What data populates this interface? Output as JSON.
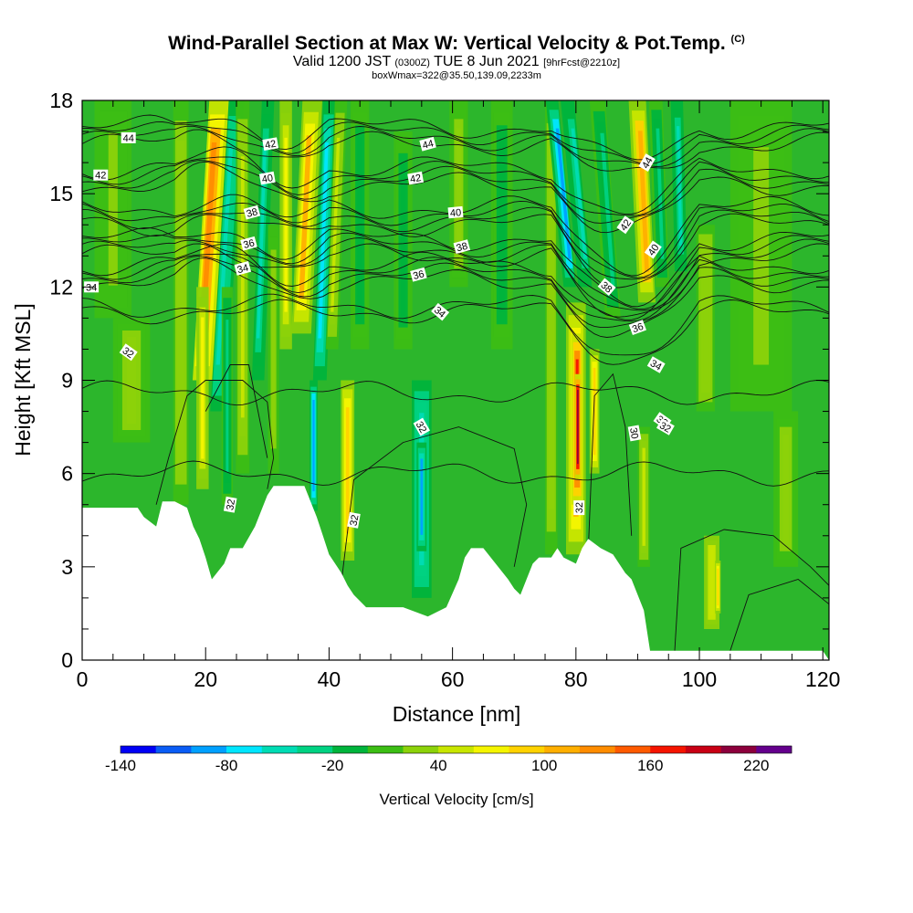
{
  "title": {
    "main": "Wind-Parallel Section at Max W: Vertical Velocity & Pot.Temp.",
    "copyright": "(C)",
    "sub_prefix": "Valid 1200 JST",
    "sub_utc": "(0300Z)",
    "sub_date": "TUE 8 Jun 2021",
    "sub_fcst": "[9hrFcst@2210z]",
    "sub2": "boxWmax=322@35.50,139.09,2233m"
  },
  "colorbar": {
    "label": "Vertical Velocity [cm/s]",
    "tick_labels": [
      "-140",
      "-80",
      "-20",
      "40",
      "100",
      "160",
      "220"
    ],
    "colors": [
      "#0000f5",
      "#0a5cf5",
      "#00a0ff",
      "#00e6ff",
      "#00dcb4",
      "#00d282",
      "#00b43c",
      "#3cbe14",
      "#8cd20a",
      "#c8e600",
      "#f5f500",
      "#ffd200",
      "#ffaf00",
      "#ff8c00",
      "#ff5a00",
      "#f51400",
      "#c80014",
      "#8c003c",
      "#64008c"
    ]
  },
  "chart_data": {
    "type": "heatmap",
    "xlabel": "Distance [nm]",
    "ylabel": "Height [Kft MSL]",
    "xlim": [
      0,
      121
    ],
    "ylim": [
      0,
      18
    ],
    "xticks": [
      "0",
      "20",
      "40",
      "60",
      "80",
      "100",
      "120"
    ],
    "yticks": [
      "0",
      "3",
      "6",
      "9",
      "12",
      "15",
      "18"
    ],
    "terrain_top_kft": [
      [
        0,
        4.9
      ],
      [
        9,
        4.9
      ],
      [
        10,
        4.6
      ],
      [
        12,
        4.3
      ],
      [
        13,
        5.1
      ],
      [
        15,
        5.1
      ],
      [
        17,
        4.9
      ],
      [
        18,
        4.3
      ],
      [
        19,
        3.9
      ],
      [
        20,
        3.3
      ],
      [
        21,
        2.6
      ],
      [
        23,
        3.1
      ],
      [
        24,
        3.6
      ],
      [
        26,
        3.6
      ],
      [
        28,
        4.3
      ],
      [
        30,
        5.3
      ],
      [
        31,
        5.6
      ],
      [
        36,
        5.6
      ],
      [
        38,
        4.6
      ],
      [
        39,
        4.0
      ],
      [
        40,
        3.4
      ],
      [
        42,
        2.8
      ],
      [
        43,
        2.4
      ],
      [
        44,
        2.1
      ],
      [
        45,
        1.9
      ],
      [
        46,
        1.7
      ],
      [
        52,
        1.7
      ],
      [
        56,
        1.4
      ],
      [
        59,
        1.7
      ],
      [
        61,
        2.6
      ],
      [
        62,
        3.3
      ],
      [
        63,
        3.6
      ],
      [
        65,
        3.6
      ],
      [
        67,
        3.1
      ],
      [
        69,
        2.6
      ],
      [
        70,
        2.3
      ],
      [
        71,
        2.1
      ],
      [
        72,
        2.6
      ],
      [
        73,
        3.1
      ],
      [
        74,
        3.3
      ],
      [
        76,
        3.3
      ],
      [
        77,
        3.6
      ],
      [
        78,
        3.3
      ],
      [
        80,
        3.1
      ],
      [
        81,
        3.6
      ],
      [
        82,
        3.9
      ],
      [
        84,
        3.6
      ],
      [
        86,
        3.4
      ],
      [
        87,
        3.1
      ],
      [
        88,
        2.8
      ],
      [
        89,
        2.6
      ],
      [
        91,
        1.6
      ],
      [
        92,
        0.3
      ],
      [
        108,
        0.3
      ],
      [
        120,
        0.3
      ]
    ],
    "vertical_velocity_cms": [
      {
        "x": 20,
        "z": 16.5,
        "w": 160
      },
      {
        "x": 24,
        "z": 16.0,
        "w": -120
      },
      {
        "x": 35,
        "z": 17.0,
        "w": 120
      },
      {
        "x": 38,
        "z": 16.5,
        "w": -100
      },
      {
        "x": 55,
        "z": 5.0,
        "w": -90
      },
      {
        "x": 80,
        "z": 8.0,
        "w": 230
      },
      {
        "x": 79,
        "z": 16.5,
        "w": -140
      },
      {
        "x": 92,
        "z": 16.5,
        "w": 140
      },
      {
        "x": 44,
        "z": 5.0,
        "w": 100
      }
    ],
    "potential_temperature_contours": [
      {
        "label": "30",
        "theta": 30
      },
      {
        "label": "32",
        "theta": 32
      },
      {
        "label": "34",
        "theta": 34
      },
      {
        "label": "36",
        "theta": 36
      },
      {
        "label": "38",
        "theta": 38
      },
      {
        "label": "40",
        "theta": 40
      },
      {
        "label": "42",
        "theta": 42
      },
      {
        "label": "44",
        "theta": 44
      }
    ],
    "contour_label_texts": [
      "42",
      "44",
      "42",
      "40",
      "38",
      "36",
      "34",
      "34",
      "32",
      "32",
      "32",
      "32",
      "44",
      "42",
      "40",
      "38",
      "36",
      "34",
      "32",
      "44",
      "42",
      "40",
      "38",
      "36",
      "34",
      "32",
      "30",
      "32"
    ]
  }
}
